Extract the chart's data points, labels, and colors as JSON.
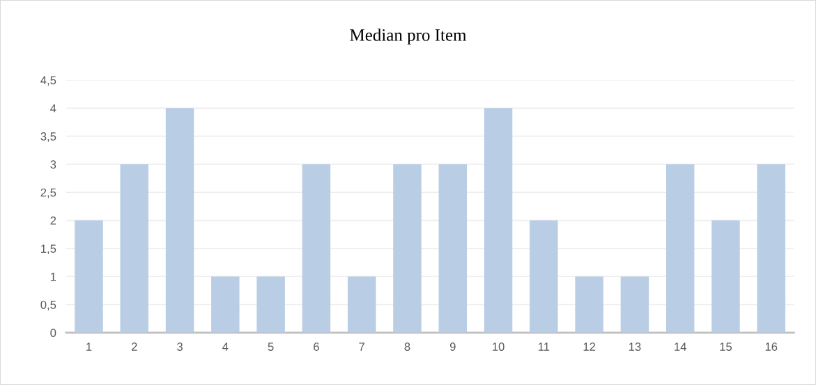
{
  "chart_data": {
    "type": "bar",
    "title": "Median pro Item",
    "categories": [
      "1",
      "2",
      "3",
      "4",
      "5",
      "6",
      "7",
      "8",
      "9",
      "10",
      "11",
      "12",
      "13",
      "14",
      "15",
      "16"
    ],
    "values": [
      2,
      3,
      4,
      1,
      1,
      3,
      1,
      3,
      3,
      4,
      2,
      1,
      1,
      3,
      2,
      3
    ],
    "color": "#b9cde5",
    "ylim": [
      0,
      4.5
    ],
    "yticks": [
      0,
      {
        "value": 0.5,
        "label": "0,5"
      },
      1,
      {
        "value": 1.5,
        "label": "1,5"
      },
      2,
      {
        "value": 2.5,
        "label": "2,5"
      },
      3,
      {
        "value": 3.5,
        "label": "3,5"
      },
      4,
      {
        "value": 4.5,
        "label": "4,5"
      }
    ],
    "grid": "y",
    "legend": false
  }
}
